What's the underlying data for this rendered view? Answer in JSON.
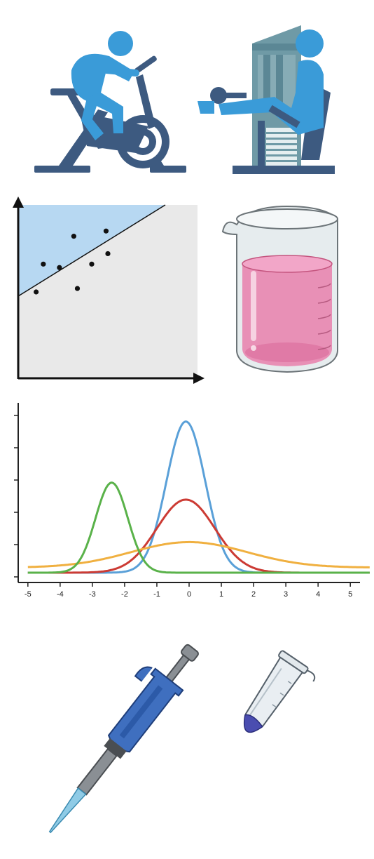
{
  "icons": {
    "exercise_bike": "exercise-bike-icon",
    "leg_extension_machine": "leg-extension-machine-icon",
    "regression_plot": "regression-plot-icon",
    "beaker": "beaker-icon",
    "pipette": "pipette-icon",
    "microtube": "microtube-icon"
  },
  "colors": {
    "icon_blue": "#3a9bd8",
    "icon_navy": "#3d5a80",
    "scatter_shade": "#b7d8f2",
    "scatter_bg": "#e9e9e9",
    "beaker_liquid": "#e890b6",
    "series": [
      "#5aa0d8",
      "#cc3b34",
      "#f0b040",
      "#5ab24a"
    ]
  },
  "chart_data": {
    "type": "line",
    "title": "",
    "xlabel": "",
    "ylabel": "",
    "xlim": [
      -5.3,
      5.3
    ],
    "ylim": [
      0,
      1
    ],
    "x_ticks": [
      "-5",
      "-4",
      "-3",
      "-2",
      "-1",
      "0",
      "1",
      "2",
      "3",
      "4",
      "5"
    ],
    "y_tick_count": 6,
    "grid": false,
    "legend": "none",
    "series": [
      {
        "color": "#5aa0d8",
        "kind": "gaussian",
        "mu": -0.1,
        "sigma": 0.6,
        "peak": 0.89,
        "baseline": 0.0
      },
      {
        "color": "#cc3b34",
        "kind": "gaussian",
        "mu": -0.1,
        "sigma": 0.9,
        "peak": 0.43,
        "baseline": 0.0
      },
      {
        "color": "#f0b040",
        "kind": "gaussian",
        "mu": 0.0,
        "sigma": 1.8,
        "peak": 0.18,
        "baseline": 0.03
      },
      {
        "color": "#5ab24a",
        "kind": "gaussian",
        "mu": -2.4,
        "sigma": 0.5,
        "peak": 0.53,
        "baseline": 0.0
      }
    ]
  },
  "scatter_plot": {
    "points": [
      [
        0.1,
        0.5
      ],
      [
        0.14,
        0.66
      ],
      [
        0.23,
        0.64
      ],
      [
        0.31,
        0.82
      ],
      [
        0.33,
        0.52
      ],
      [
        0.41,
        0.66
      ],
      [
        0.49,
        0.85
      ],
      [
        0.5,
        0.72
      ]
    ]
  }
}
